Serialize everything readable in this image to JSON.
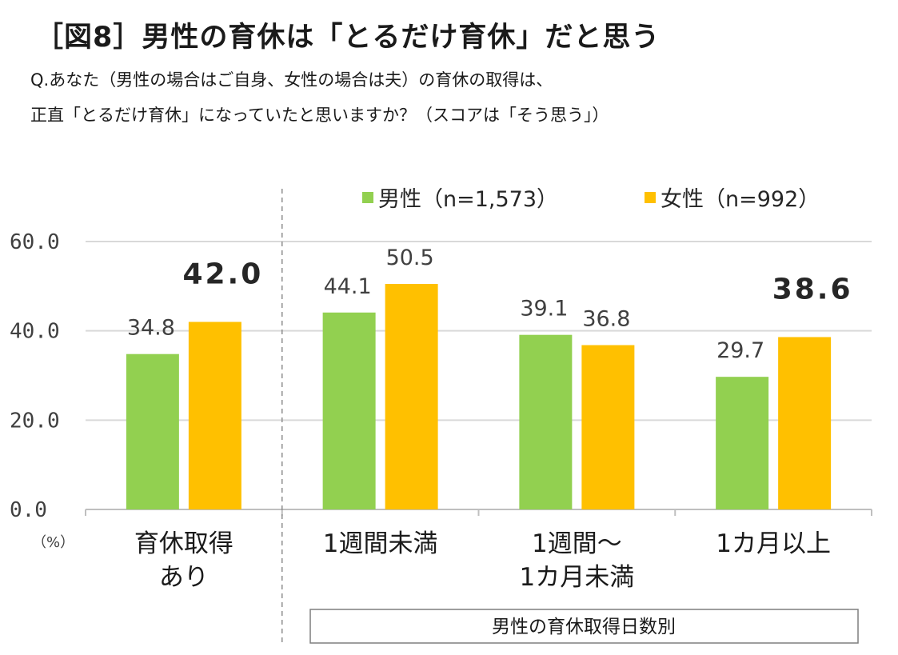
{
  "title": "［図8］男性の育休は「とるだけ育休」だと思う",
  "question_line1": "Q.あなた（男性の場合はご自身、女性の場合は夫）の育休の取得は、",
  "question_line2": "正直「とるだけ育休」になっていたと思いますか？（スコアは「そう思う」）",
  "colors": {
    "male": "#92d050",
    "female": "#ffc000",
    "grid": "#d9d9d9",
    "axis": "#bfbfbf",
    "text": "#404040"
  },
  "chart_data": {
    "type": "bar",
    "categories": [
      [
        "育休取得",
        "あり"
      ],
      [
        "1週間未満"
      ],
      [
        "1週間～",
        "1カ月未満"
      ],
      [
        "1カ月以上"
      ]
    ],
    "series": [
      {
        "name": "男性（n=1,573）",
        "values": [
          34.8,
          44.1,
          39.1,
          29.7
        ]
      },
      {
        "name": "女性（n=992）",
        "values": [
          42.0,
          50.5,
          36.8,
          38.6
        ]
      }
    ],
    "value_labels": [
      [
        "34.8",
        "44.1",
        "39.1",
        "29.7"
      ],
      [
        "42.0",
        "50.5",
        "36.8",
        "38.6"
      ]
    ],
    "bold_labels": [
      "42.0",
      "38.6"
    ],
    "y_ticks": [
      "0.0",
      "20.0",
      "40.0",
      "60.0"
    ],
    "ylim": [
      0,
      60
    ],
    "ylabel": "（%）",
    "group_label": "男性の育休取得日数別",
    "legend_position": "top-center"
  }
}
